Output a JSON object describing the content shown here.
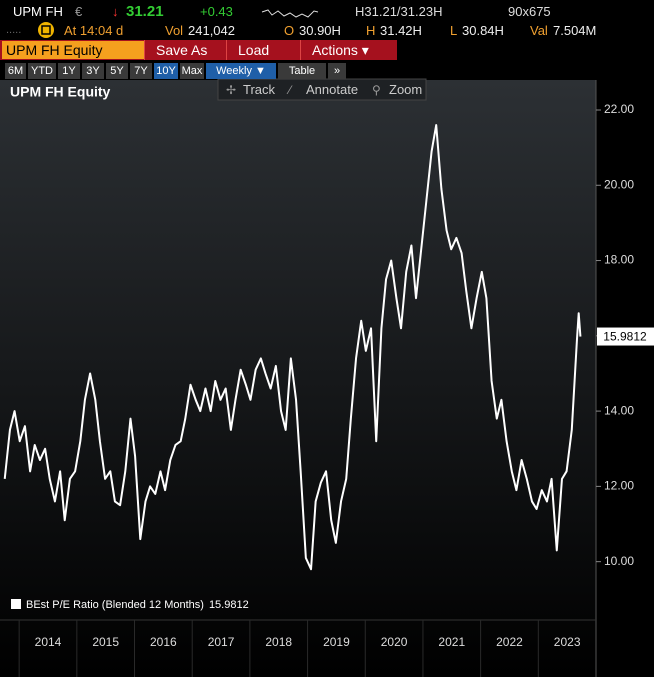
{
  "header": {
    "ticker": "UPM FH",
    "currency": "€",
    "arrow": "↓",
    "last": "31.21",
    "change": "+0.43",
    "bid_ask": "H31.21/31.23H",
    "size": "90x675",
    "time": "At 14:04 d",
    "stats": [
      {
        "label": "Vol",
        "value": "241,042"
      },
      {
        "label": "O",
        "value": "30.90H"
      },
      {
        "label": "H",
        "value": "31.42H"
      },
      {
        "label": "L",
        "value": "30.84H"
      },
      {
        "label": "Val",
        "value": "7.504M"
      }
    ],
    "security": "UPM FH Equity",
    "menu": [
      "Save As",
      "Load",
      "Actions ▾"
    ],
    "periods": [
      "6M",
      "YTD",
      "1Y",
      "3Y",
      "5Y",
      "7Y",
      "10Y",
      "Max"
    ],
    "frequency": "Weekly ▼",
    "table": "Table",
    "more": "»",
    "tools": [
      "Track",
      "Annotate",
      "Zoom"
    ]
  },
  "chart_data": {
    "type": "line",
    "title": "UPM FH Equity",
    "x": [
      2013.75,
      2013.84,
      2013.92,
      2014.01,
      2014.1,
      2014.19,
      2014.27,
      2014.36,
      2014.45,
      2014.53,
      2014.62,
      2014.71,
      2014.79,
      2014.88,
      2014.97,
      2015.06,
      2015.14,
      2015.23,
      2015.32,
      2015.4,
      2015.49,
      2015.58,
      2015.66,
      2015.75,
      2015.84,
      2015.93,
      2016.01,
      2016.1,
      2016.19,
      2016.27,
      2016.36,
      2016.45,
      2016.53,
      2016.62,
      2016.71,
      2016.8,
      2016.88,
      2016.97,
      2017.06,
      2017.14,
      2017.23,
      2017.32,
      2017.4,
      2017.49,
      2017.58,
      2017.67,
      2017.75,
      2017.84,
      2017.93,
      2018.01,
      2018.1,
      2018.19,
      2018.27,
      2018.36,
      2018.45,
      2018.54,
      2018.62,
      2018.71,
      2018.8,
      2018.88,
      2018.97,
      2019.06,
      2019.14,
      2019.23,
      2019.32,
      2019.41,
      2019.49,
      2019.58,
      2019.67,
      2019.75,
      2019.84,
      2019.93,
      2020.01,
      2020.1,
      2020.19,
      2020.28,
      2020.36,
      2020.45,
      2020.54,
      2020.62,
      2020.71,
      2020.8,
      2020.88,
      2020.97,
      2021.06,
      2021.15,
      2021.23,
      2021.32,
      2021.41,
      2021.49,
      2021.58,
      2021.67,
      2021.75,
      2021.84,
      2021.93,
      2022.02,
      2022.1,
      2022.19,
      2022.28,
      2022.36,
      2022.45,
      2022.54,
      2022.62,
      2022.71,
      2022.8,
      2022.89,
      2022.97,
      2023.06,
      2023.15,
      2023.23,
      2023.32,
      2023.41,
      2023.49,
      2023.58,
      2023.67,
      2023.7,
      2023.73
    ],
    "series": [
      {
        "name": "BEst P/E Ratio (Blended 12 Months)",
        "color": "#ffffff",
        "values": [
          12.2,
          13.5,
          14.0,
          13.2,
          13.6,
          12.4,
          13.1,
          12.7,
          13.0,
          12.2,
          11.6,
          12.4,
          11.1,
          12.2,
          12.4,
          13.2,
          14.3,
          15.0,
          14.3,
          13.2,
          12.2,
          12.4,
          11.6,
          11.5,
          12.4,
          13.8,
          12.8,
          10.6,
          11.6,
          12.0,
          11.8,
          12.4,
          11.9,
          12.7,
          13.1,
          13.2,
          13.8,
          14.7,
          14.3,
          14.0,
          14.6,
          14.0,
          14.8,
          14.3,
          14.6,
          13.5,
          14.3,
          15.1,
          14.7,
          14.3,
          15.1,
          15.4,
          15.0,
          14.6,
          15.2,
          14.0,
          13.5,
          15.4,
          14.3,
          12.4,
          10.1,
          9.8,
          11.6,
          12.1,
          12.4,
          11.1,
          10.5,
          11.6,
          12.2,
          13.8,
          15.4,
          16.4,
          15.6,
          16.2,
          13.2,
          16.2,
          17.5,
          18.0,
          17.0,
          16.2,
          17.7,
          18.4,
          17.0,
          18.3,
          19.6,
          20.9,
          21.6,
          19.9,
          18.8,
          18.3,
          18.6,
          18.2,
          17.2,
          16.2,
          17.0,
          17.7,
          17.0,
          14.8,
          13.8,
          14.3,
          13.2,
          12.4,
          11.9,
          12.7,
          12.2,
          11.6,
          11.4,
          11.9,
          11.6,
          12.2,
          10.3,
          12.2,
          12.4,
          13.5,
          15.9,
          16.6,
          15.9812
        ]
      }
    ],
    "xlim": [
      2013.72,
      2024.0
    ],
    "xticks": [
      2014,
      2015,
      2016,
      2017,
      2018,
      2019,
      2020,
      2021,
      2022,
      2023
    ],
    "ylim": [
      8.45,
      22.85
    ],
    "yticks": [
      {
        "value": 10,
        "label": "10.00"
      },
      {
        "value": 12,
        "label": "12.00"
      },
      {
        "value": 14,
        "label": "14.00"
      },
      {
        "value": 16,
        "label": "16.00"
      },
      {
        "value": 18,
        "label": "18.00"
      },
      {
        "value": 20,
        "label": "20.00"
      },
      {
        "value": 22,
        "label": "22.00"
      }
    ],
    "grid": false
  }
}
